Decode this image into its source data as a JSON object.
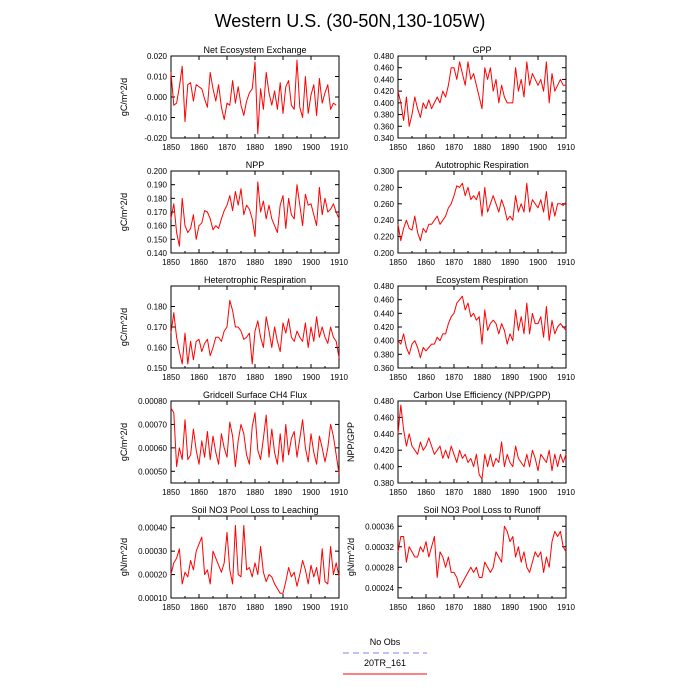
{
  "title": "Western U.S. (30-50N,130-105W)",
  "colors": {
    "series": "#ff0000",
    "obs": "#6666ff",
    "axis": "#000000"
  },
  "legend": [
    {
      "label": "No Obs",
      "style": "dashed",
      "color": "#8080ff"
    },
    {
      "label": "20TR_161",
      "style": "solid",
      "color": "#ff0000"
    }
  ],
  "chart_data": [
    {
      "type": "line",
      "title": "Net Ecosystem Exchange",
      "ylabel": "gC/m^2/d",
      "xlim": [
        1850,
        1910
      ],
      "ylim": [
        -0.02,
        0.02
      ],
      "xticks": [
        "1850",
        "1860",
        "1870",
        "1880",
        "1890",
        "1900",
        "1910"
      ],
      "yticks": [
        "-0.020",
        "-0.010",
        "0.000",
        "0.010",
        "0.020"
      ],
      "series": [
        {
          "x_start": 1850,
          "values": [
            0.012,
            -0.004,
            -0.003,
            0.005,
            0.015,
            -0.012,
            0.006,
            0.007,
            -0.002,
            0.006,
            0.005,
            0.004,
            -0.001,
            -0.005,
            0.012,
            0.004,
            -0.002,
            0.006,
            -0.005,
            -0.011,
            -0.003,
            -0.004,
            0.008,
            -0.003,
            0.005,
            -0.004,
            -0.009,
            -0.002,
            0.002,
            0.004,
            0.017,
            -0.018,
            0.004,
            -0.006,
            0.012,
            0.002,
            -0.004,
            0.003,
            -0.006,
            0.007,
            -0.008,
            0.005,
            0.008,
            -0.004,
            -0.006,
            0.018,
            -0.005,
            -0.01,
            0.01,
            -0.008,
            0.001,
            0.006,
            -0.009,
            0.009,
            -0.003,
            0.002,
            0.006,
            -0.006,
            -0.003,
            -0.004
          ]
        }
      ]
    },
    {
      "type": "line",
      "title": "GPP",
      "ylabel": "",
      "xlim": [
        1850,
        1910
      ],
      "ylim": [
        0.34,
        0.48
      ],
      "xticks": [
        "1850",
        "1860",
        "1870",
        "1880",
        "1890",
        "1900",
        "1910"
      ],
      "yticks": [
        "0.340",
        "0.360",
        "0.380",
        "0.400",
        "0.420",
        "0.440",
        "0.460",
        "0.480"
      ],
      "series": [
        {
          "x_start": 1850,
          "values": [
            0.42,
            0.4,
            0.37,
            0.41,
            0.36,
            0.38,
            0.41,
            0.39,
            0.375,
            0.4,
            0.39,
            0.405,
            0.39,
            0.4,
            0.41,
            0.4,
            0.42,
            0.41,
            0.43,
            0.46,
            0.46,
            0.44,
            0.47,
            0.45,
            0.43,
            0.47,
            0.44,
            0.45,
            0.43,
            0.41,
            0.39,
            0.46,
            0.44,
            0.46,
            0.42,
            0.44,
            0.4,
            0.43,
            0.41,
            0.4,
            0.4,
            0.4,
            0.46,
            0.42,
            0.44,
            0.41,
            0.47,
            0.43,
            0.45,
            0.44,
            0.43,
            0.44,
            0.42,
            0.47,
            0.4,
            0.45,
            0.42,
            0.43,
            0.44,
            0.43,
            0.43
          ]
        }
      ]
    },
    {
      "type": "line",
      "title": "NPP",
      "ylabel": "gC/m^2/d",
      "xlim": [
        1850,
        1910
      ],
      "ylim": [
        0.14,
        0.2
      ],
      "xticks": [
        "1850",
        "1860",
        "1870",
        "1880",
        "1890",
        "1900",
        "1910"
      ],
      "yticks": [
        "0.140",
        "0.150",
        "0.160",
        "0.170",
        "0.180",
        "0.190",
        "0.200"
      ],
      "series": [
        {
          "x_start": 1850,
          "values": [
            0.165,
            0.176,
            0.155,
            0.145,
            0.18,
            0.16,
            0.155,
            0.158,
            0.168,
            0.15,
            0.16,
            0.162,
            0.171,
            0.17,
            0.165,
            0.157,
            0.16,
            0.158,
            0.165,
            0.171,
            0.175,
            0.182,
            0.171,
            0.185,
            0.175,
            0.187,
            0.168,
            0.175,
            0.172,
            0.165,
            0.152,
            0.192,
            0.17,
            0.178,
            0.165,
            0.175,
            0.165,
            0.16,
            0.155,
            0.175,
            0.182,
            0.158,
            0.18,
            0.168,
            0.165,
            0.19,
            0.175,
            0.16,
            0.183,
            0.175,
            0.176,
            0.168,
            0.16,
            0.188,
            0.168,
            0.18,
            0.17,
            0.172,
            0.176,
            0.17,
            0.165
          ]
        }
      ]
    },
    {
      "type": "line",
      "title": "Autotrophic Respiration",
      "ylabel": "",
      "xlim": [
        1850,
        1910
      ],
      "ylim": [
        0.2,
        0.3
      ],
      "xticks": [
        "1850",
        "1860",
        "1870",
        "1880",
        "1890",
        "1900",
        "1910"
      ],
      "yticks": [
        "0.200",
        "0.220",
        "0.240",
        "0.260",
        "0.280",
        "0.300"
      ],
      "series": [
        {
          "x_start": 1850,
          "values": [
            0.235,
            0.215,
            0.23,
            0.24,
            0.23,
            0.228,
            0.245,
            0.225,
            0.215,
            0.23,
            0.225,
            0.235,
            0.235,
            0.24,
            0.245,
            0.235,
            0.24,
            0.245,
            0.255,
            0.26,
            0.27,
            0.282,
            0.28,
            0.285,
            0.27,
            0.28,
            0.265,
            0.27,
            0.265,
            0.275,
            0.245,
            0.28,
            0.25,
            0.26,
            0.27,
            0.26,
            0.25,
            0.265,
            0.255,
            0.24,
            0.245,
            0.24,
            0.27,
            0.25,
            0.26,
            0.25,
            0.285,
            0.25,
            0.265,
            0.26,
            0.255,
            0.265,
            0.25,
            0.275,
            0.24,
            0.262,
            0.245,
            0.26,
            0.26,
            0.258,
            0.262
          ]
        }
      ]
    },
    {
      "type": "line",
      "title": "Heterotrophic Respiration",
      "ylabel": "gC/m^2/d",
      "xlim": [
        1850,
        1910
      ],
      "ylim": [
        0.15,
        0.19
      ],
      "xticks": [
        "1850",
        "1860",
        "1870",
        "1880",
        "1890",
        "1900",
        "1910"
      ],
      "yticks": [
        "0.150",
        "0.160",
        "0.170",
        "0.180"
      ],
      "series": [
        {
          "x_start": 1850,
          "values": [
            0.167,
            0.177,
            0.165,
            0.158,
            0.152,
            0.167,
            0.152,
            0.163,
            0.154,
            0.163,
            0.164,
            0.158,
            0.162,
            0.164,
            0.156,
            0.16,
            0.165,
            0.165,
            0.163,
            0.168,
            0.17,
            0.183,
            0.178,
            0.17,
            0.17,
            0.168,
            0.164,
            0.165,
            0.167,
            0.152,
            0.168,
            0.173,
            0.165,
            0.16,
            0.175,
            0.168,
            0.16,
            0.17,
            0.163,
            0.158,
            0.172,
            0.167,
            0.174,
            0.165,
            0.163,
            0.168,
            0.165,
            0.163,
            0.172,
            0.16,
            0.17,
            0.163,
            0.175,
            0.165,
            0.17,
            0.165,
            0.162,
            0.17,
            0.165,
            0.163,
            0.155
          ]
        }
      ]
    },
    {
      "type": "line",
      "title": "Ecosystem Respiration",
      "ylabel": "",
      "xlim": [
        1850,
        1910
      ],
      "ylim": [
        0.36,
        0.48
      ],
      "xticks": [
        "1850",
        "1860",
        "1870",
        "1880",
        "1890",
        "1900",
        "1910"
      ],
      "yticks": [
        "0.360",
        "0.380",
        "0.400",
        "0.420",
        "0.440",
        "0.460",
        "0.480"
      ],
      "series": [
        {
          "x_start": 1850,
          "values": [
            0.4,
            0.395,
            0.41,
            0.39,
            0.38,
            0.395,
            0.4,
            0.39,
            0.375,
            0.39,
            0.385,
            0.39,
            0.395,
            0.395,
            0.405,
            0.4,
            0.41,
            0.41,
            0.425,
            0.435,
            0.44,
            0.455,
            0.46,
            0.465,
            0.445,
            0.455,
            0.435,
            0.44,
            0.43,
            0.435,
            0.395,
            0.445,
            0.415,
            0.425,
            0.43,
            0.425,
            0.41,
            0.425,
            0.415,
            0.395,
            0.41,
            0.4,
            0.445,
            0.415,
            0.435,
            0.41,
            0.455,
            0.41,
            0.44,
            0.425,
            0.425,
            0.435,
            0.405,
            0.45,
            0.4,
            0.43,
            0.41,
            0.42,
            0.425,
            0.42,
            0.415
          ]
        }
      ]
    },
    {
      "type": "line",
      "title": "Gridcell Surface CH4 Flux",
      "ylabel": "gC/m^2/d",
      "xlim": [
        1850,
        1910
      ],
      "ylim": [
        0.00045,
        0.0008
      ],
      "xticks": [
        "1850",
        "1860",
        "1870",
        "1880",
        "1890",
        "1900",
        "1910"
      ],
      "yticks": [
        "0.00050",
        "0.00060",
        "0.00070",
        "0.00080"
      ],
      "series": [
        {
          "x_start": 1850,
          "values": [
            0.00077,
            0.00075,
            0.00052,
            0.0006,
            0.00055,
            0.00072,
            0.00055,
            0.00057,
            0.00068,
            0.00059,
            0.00053,
            0.00063,
            0.00056,
            0.00067,
            0.00055,
            0.00065,
            0.00058,
            0.00053,
            0.00066,
            0.0006,
            0.00056,
            0.00071,
            0.00065,
            0.00052,
            0.00063,
            0.0007,
            0.00066,
            0.00057,
            0.00053,
            0.00069,
            0.00075,
            0.00059,
            0.00055,
            0.00064,
            0.00074,
            0.00056,
            0.00068,
            0.00058,
            0.00053,
            0.00066,
            0.00054,
            0.0007,
            0.00057,
            0.00064,
            0.00067,
            0.00056,
            0.00064,
            0.00072,
            0.0006,
            0.00054,
            0.00066,
            0.00058,
            0.00053,
            0.00065,
            0.0006,
            0.00054,
            0.0006,
            0.0007,
            0.00065,
            0.00057,
            0.00049
          ]
        }
      ]
    },
    {
      "type": "line",
      "title": "Carbon Use Efficiency (NPP/GPP)",
      "ylabel": "NPP/GPP",
      "xlim": [
        1850,
        1910
      ],
      "ylim": [
        0.38,
        0.48
      ],
      "xticks": [
        "1850",
        "1860",
        "1870",
        "1880",
        "1890",
        "1900",
        "1910"
      ],
      "yticks": [
        "0.380",
        "0.400",
        "0.420",
        "0.440",
        "0.460",
        "0.480"
      ],
      "series": [
        {
          "x_start": 1850,
          "values": [
            0.44,
            0.475,
            0.445,
            0.425,
            0.44,
            0.425,
            0.42,
            0.415,
            0.43,
            0.42,
            0.425,
            0.435,
            0.425,
            0.415,
            0.42,
            0.425,
            0.41,
            0.42,
            0.41,
            0.425,
            0.415,
            0.405,
            0.42,
            0.41,
            0.415,
            0.405,
            0.41,
            0.4,
            0.415,
            0.39,
            0.385,
            0.415,
            0.4,
            0.415,
            0.4,
            0.41,
            0.405,
            0.43,
            0.4,
            0.415,
            0.405,
            0.4,
            0.425,
            0.41,
            0.405,
            0.4,
            0.415,
            0.4,
            0.42,
            0.41,
            0.395,
            0.415,
            0.41,
            0.405,
            0.42,
            0.395,
            0.415,
            0.4,
            0.415,
            0.405,
            0.415
          ]
        }
      ]
    },
    {
      "type": "line",
      "title": "Soil NO3 Pool Loss to Leaching",
      "ylabel": "gN/m^2/d",
      "xlim": [
        1850,
        1910
      ],
      "ylim": [
        0.0001,
        0.00045
      ],
      "xticks": [
        "1850",
        "1860",
        "1870",
        "1880",
        "1890",
        "1900",
        "1910"
      ],
      "yticks": [
        "0.00010",
        "0.00020",
        "0.00030",
        "0.00040"
      ],
      "series": [
        {
          "x_start": 1850,
          "values": [
            0.0002,
            0.00025,
            0.00027,
            0.00031,
            0.00016,
            0.00021,
            0.00019,
            0.00026,
            0.00022,
            0.0003,
            0.00033,
            0.00036,
            0.0002,
            0.00022,
            0.00016,
            0.0003,
            0.00027,
            0.00024,
            0.00021,
            0.00025,
            0.00038,
            0.00022,
            0.00016,
            0.00041,
            0.0002,
            0.00019,
            0.00041,
            0.00022,
            0.00023,
            0.00019,
            0.00025,
            0.0002,
            0.00032,
            0.00021,
            0.00017,
            0.0002,
            0.00019,
            0.00016,
            0.00014,
            0.00012,
            0.00012,
            0.00017,
            0.00023,
            0.00019,
            0.00021,
            0.00015,
            0.0002,
            0.00026,
            0.00022,
            0.00016,
            0.00024,
            0.00019,
            0.00023,
            0.00016,
            0.00031,
            0.00017,
            0.00016,
            0.00032,
            0.0002,
            0.00025,
            0.00019
          ]
        }
      ]
    },
    {
      "type": "line",
      "title": "Soil NO3 Pool Loss to Runoff",
      "ylabel": "gN/m^2/d",
      "xlim": [
        1850,
        1910
      ],
      "ylim": [
        0.00022,
        0.00038
      ],
      "xticks": [
        "1850",
        "1860",
        "1870",
        "1880",
        "1890",
        "1900",
        "1910"
      ],
      "yticks": [
        "0.00024",
        "0.00028",
        "0.00032",
        "0.00036"
      ],
      "series": [
        {
          "x_start": 1850,
          "values": [
            0.00031,
            0.00034,
            0.00034,
            0.00029,
            0.00032,
            0.00031,
            0.0003,
            0.0003,
            0.00032,
            0.00031,
            0.00033,
            0.0003,
            0.00032,
            0.00034,
            0.00026,
            0.00031,
            0.0003,
            0.00028,
            0.0003,
            0.00027,
            0.00027,
            0.00026,
            0.00024,
            0.00025,
            0.00026,
            0.00027,
            0.00028,
            0.00027,
            0.00028,
            0.00026,
            0.00026,
            0.00029,
            0.00028,
            0.00027,
            0.00028,
            0.00031,
            0.0003,
            0.00029,
            0.00036,
            0.00035,
            0.00033,
            0.00034,
            0.0003,
            0.00032,
            0.00029,
            0.00031,
            0.00028,
            0.00027,
            0.00029,
            0.00031,
            0.0003,
            0.00031,
            0.00027,
            0.0003,
            0.00028,
            0.00033,
            0.00035,
            0.00034,
            0.00035,
            0.00032,
            0.00031
          ]
        }
      ]
    }
  ]
}
